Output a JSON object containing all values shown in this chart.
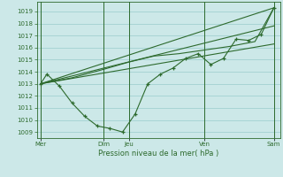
{
  "bg_color": "#cce8e8",
  "grid_color": "#99cccc",
  "line_color": "#2d6a2d",
  "marker_color": "#2d6a2d",
  "xlabel": "Pression niveau de la mer( hPa )",
  "xlabel_color": "#2d6a2d",
  "tick_color": "#2d6a2d",
  "ylim": [
    1008.5,
    1019.8
  ],
  "yticks": [
    1009,
    1010,
    1011,
    1012,
    1013,
    1014,
    1015,
    1016,
    1017,
    1018,
    1019
  ],
  "xlim": [
    -0.3,
    19.0
  ],
  "xtick_positions": [
    0,
    5,
    7,
    13,
    18.5
  ],
  "xtick_labels": [
    "Mer",
    "Dim",
    "Jeu",
    "Ven",
    "Sam"
  ],
  "vlines": [
    0,
    5,
    7,
    13,
    18.5
  ],
  "main_x": [
    0,
    0.5,
    1.5,
    2.5,
    3.5,
    4.5,
    5.5,
    6.5,
    7.5,
    8.5,
    9.5,
    10.5,
    11.5,
    12.5,
    13.5,
    14.5,
    15.5,
    16.5,
    17.5,
    18.5
  ],
  "main_y": [
    1013.0,
    1013.8,
    1012.8,
    1011.4,
    1010.3,
    1009.5,
    1009.3,
    1009.0,
    1010.5,
    1013.0,
    1013.8,
    1014.3,
    1015.1,
    1015.5,
    1014.6,
    1015.1,
    1016.7,
    1016.6,
    1017.1,
    1019.3
  ],
  "trend1_x": [
    0,
    18.5
  ],
  "trend1_y": [
    1013.0,
    1019.3
  ],
  "trend2_x": [
    0,
    18.5
  ],
  "trend2_y": [
    1013.0,
    1017.8
  ],
  "trend3_x": [
    0,
    18.5
  ],
  "trend3_y": [
    1013.0,
    1016.3
  ],
  "smooth_x": [
    0,
    2.5,
    5,
    7,
    9,
    11,
    13,
    15,
    17,
    18.5
  ],
  "smooth_y": [
    1013.0,
    1013.5,
    1014.2,
    1014.8,
    1015.3,
    1015.5,
    1015.8,
    1016.1,
    1016.5,
    1019.3
  ]
}
